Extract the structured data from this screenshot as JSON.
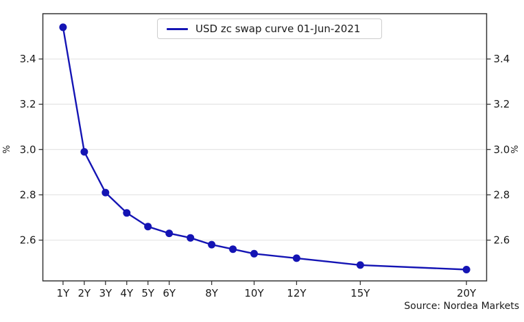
{
  "chart_data": {
    "type": "line",
    "title": "",
    "legend_label": "USD zc swap curve 01-Jun-2021",
    "legend_position": "top-center",
    "x": [
      1,
      2,
      3,
      4,
      5,
      6,
      7,
      8,
      9,
      10,
      12,
      15,
      20
    ],
    "values": [
      3.54,
      2.99,
      2.81,
      2.72,
      2.66,
      2.63,
      2.61,
      2.58,
      2.56,
      2.54,
      2.52,
      2.49,
      2.47
    ],
    "x_tick_labels": [
      {
        "v": 1,
        "label": "1Y"
      },
      {
        "v": 2,
        "label": "2Y"
      },
      {
        "v": 3,
        "label": "3Y"
      },
      {
        "v": 4,
        "label": "4Y"
      },
      {
        "v": 5,
        "label": "5Y"
      },
      {
        "v": 6,
        "label": "6Y"
      },
      {
        "v": 8,
        "label": "8Y"
      },
      {
        "v": 10,
        "label": "10Y"
      },
      {
        "v": 12,
        "label": "12Y"
      },
      {
        "v": 15,
        "label": "15Y"
      },
      {
        "v": 20,
        "label": "20Y"
      }
    ],
    "y_tick_labels": [
      {
        "v": 2.6,
        "label": "2.6"
      },
      {
        "v": 2.8,
        "label": "2.8"
      },
      {
        "v": 3.0,
        "label": "3.0"
      },
      {
        "v": 3.2,
        "label": "3.2"
      },
      {
        "v": 3.4,
        "label": "3.4"
      }
    ],
    "ylabel_left": "%",
    "ylabel_right": "%",
    "xlim": [
      0.05,
      20.95
    ],
    "ylim": [
      2.42,
      3.6
    ],
    "grid": "horizontal",
    "marker": "circle",
    "colors": {
      "line": "#1414b4",
      "grid": "#e6e6e6",
      "frame": "#333333",
      "text": "#1a1a1a",
      "legend_border": "#cccccc"
    }
  },
  "source_note": "Source: Nordea Markets"
}
